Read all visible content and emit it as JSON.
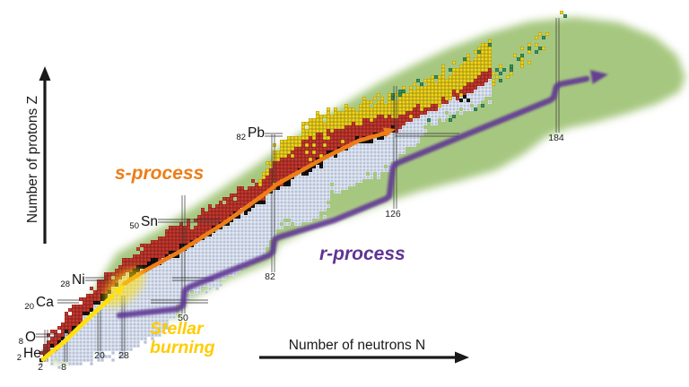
{
  "axes": {
    "y_label": "Number of protons Z",
    "x_label": "Number of neutrons N"
  },
  "process_labels": {
    "s_process": "s-process",
    "r_process": "r-process",
    "stellar_burning_line1": "Stellar",
    "stellar_burning_line2": "burning"
  },
  "element_markers": [
    {
      "subscript": "2",
      "symbol": "He"
    },
    {
      "subscript": "8",
      "symbol": "O"
    },
    {
      "subscript": "20",
      "symbol": "Ca"
    },
    {
      "subscript": "28",
      "symbol": "Ni"
    },
    {
      "subscript": "50",
      "symbol": "Sn"
    },
    {
      "subscript": "82",
      "symbol": "Pb"
    }
  ],
  "neutron_magic_numbers": [
    "2",
    "8",
    "20",
    "28",
    "50",
    "82",
    "126",
    "184"
  ],
  "palette": {
    "background": "#ffffff",
    "predicted_region_green": "#a6c77f",
    "cell_red": "#c23b31",
    "cell_red_grid": "#8b1f19",
    "cell_blue": "#b5c1d7",
    "cell_blue_grid": "#eef1f7",
    "cell_yellow": "#f1d51d",
    "cell_yellow_grid": "#a59214",
    "cell_green": "#35915a",
    "cell_green_grid": "#20613c",
    "cell_black": "#161616",
    "s_process_orange": "#ed7d17",
    "r_process_purple": "#5f3594",
    "stellar_arrow_yellow": "#ffe011",
    "stellar_text_yellow": "#ffcc00",
    "axis_black": "#1a1a1a",
    "magic_line_gray": "#3a3a3a",
    "number_text": "#222222"
  }
}
